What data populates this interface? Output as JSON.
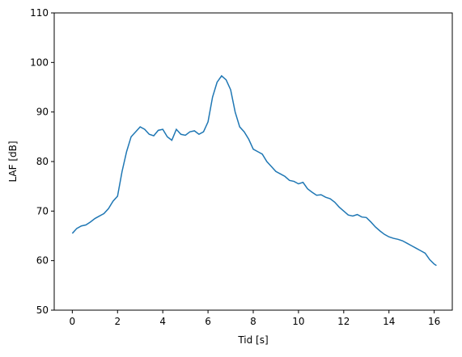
{
  "chart_data": {
    "type": "line",
    "x_label": "Tid [s]",
    "y_label": "LAF [dB]",
    "x": [
      0,
      0.2,
      0.4,
      0.6,
      0.8,
      1.0,
      1.2,
      1.4,
      1.6,
      1.8,
      2.0,
      2.2,
      2.4,
      2.6,
      2.8,
      3.0,
      3.2,
      3.4,
      3.6,
      3.8,
      4.0,
      4.2,
      4.4,
      4.6,
      4.8,
      5.0,
      5.2,
      5.4,
      5.6,
      5.8,
      6.0,
      6.2,
      6.4,
      6.6,
      6.8,
      7.0,
      7.2,
      7.4,
      7.6,
      7.8,
      8.0,
      8.2,
      8.4,
      8.6,
      8.8,
      9.0,
      9.2,
      9.4,
      9.6,
      9.8,
      10.0,
      10.2,
      10.4,
      10.6,
      10.8,
      11.0,
      11.2,
      11.4,
      11.6,
      11.8,
      12.0,
      12.2,
      12.4,
      12.6,
      12.8,
      13.0,
      13.2,
      13.4,
      13.6,
      13.8,
      14.0,
      14.2,
      14.4,
      14.6,
      14.8,
      15.0,
      15.2,
      15.4,
      15.6,
      15.8,
      16.0,
      16.1
    ],
    "series": [
      {
        "color": "#1f77b4",
        "values": [
          65.5,
          66.5,
          67,
          67.2,
          67.8,
          68.5,
          69,
          69.5,
          70.5,
          72,
          73,
          78,
          82,
          85,
          86,
          87,
          86.5,
          85.5,
          85.2,
          86.3,
          86.5,
          85,
          84.3,
          86.5,
          85.5,
          85.3,
          86,
          86.2,
          85.5,
          86,
          88,
          93,
          96,
          97.3,
          96.5,
          94.5,
          90,
          87,
          86,
          84.5,
          82.5,
          82,
          81.5,
          80,
          79,
          78,
          77.5,
          77,
          76.2,
          76,
          75.5,
          75.8,
          74.5,
          73.8,
          73.2,
          73.3,
          72.8,
          72.5,
          71.8,
          70.8,
          70,
          69.2,
          69,
          69.3,
          68.8,
          68.7,
          67.8,
          66.8,
          66,
          65.3,
          64.8,
          64.5,
          64.3,
          64,
          63.5,
          63,
          62.5,
          62,
          61.5,
          60.2,
          59.3,
          59
        ]
      }
    ],
    "xlim": [
      -0.8,
      16.8
    ],
    "xticks": [
      0,
      2,
      4,
      6,
      8,
      10,
      12,
      14,
      16
    ],
    "ylim": [
      50,
      110
    ],
    "yticks": [
      50,
      60,
      70,
      80,
      90,
      100,
      110
    ]
  }
}
